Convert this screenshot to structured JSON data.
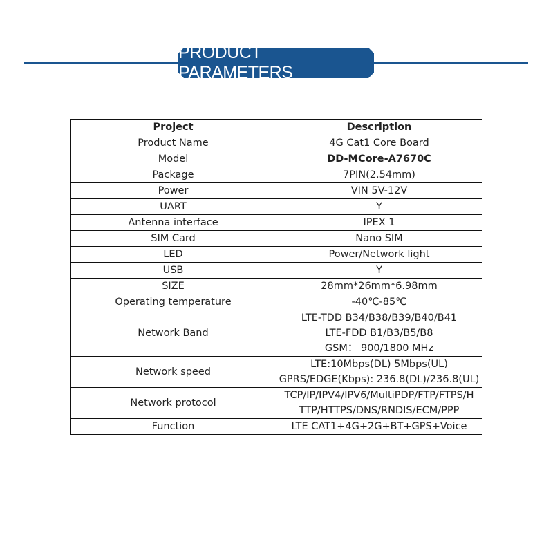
{
  "title": "PRODUCT PARAMETERS",
  "header": {
    "project": "Project",
    "description": "Description"
  },
  "rows": [
    {
      "project": "Product Name",
      "description": [
        "4G Cat1 Core Board"
      ]
    },
    {
      "project": "Model",
      "description": [
        "DD-MCore-A7670C"
      ]
    },
    {
      "project": "Package",
      "description": [
        "7PIN(2.54mm)"
      ]
    },
    {
      "project": "Power",
      "description": [
        "VIN 5V-12V"
      ]
    },
    {
      "project": "UART",
      "description": [
        "Y"
      ]
    },
    {
      "project": "Antenna interface",
      "description": [
        "IPEX 1"
      ]
    },
    {
      "project": "SIM Card",
      "description": [
        "Nano SIM"
      ]
    },
    {
      "project": "LED",
      "description": [
        "Power/Network light"
      ]
    },
    {
      "project": "USB",
      "description": [
        "Y"
      ]
    },
    {
      "project": "SIZE",
      "description": [
        "28mm*26mm*6.98mm"
      ]
    },
    {
      "project": "Operating temperature",
      "description": [
        "-40℃-85℃"
      ]
    },
    {
      "project": "Network Band",
      "description": [
        "LTE-TDD B34/B38/B39/B40/B41",
        "LTE-FDD B1/B3/B5/B8",
        "GSM： 900/1800 MHz"
      ]
    },
    {
      "project": "Network speed",
      "description": [
        "LTE:10Mbps(DL)  5Mbps(UL)",
        "GPRS/EDGE(Kbps): 236.8(DL)/236.8(UL)"
      ]
    },
    {
      "project": "Network protocol",
      "description": [
        "TCP/IP/IPV4/IPV6/MultiPDP/FTP/FTPS/H",
        "TTP/HTTPS/DNS/RNDIS/ECM/PPP"
      ]
    },
    {
      "project": "Function",
      "description": [
        "LTE CAT1+4G+2G+BT+GPS+Voice"
      ]
    }
  ]
}
